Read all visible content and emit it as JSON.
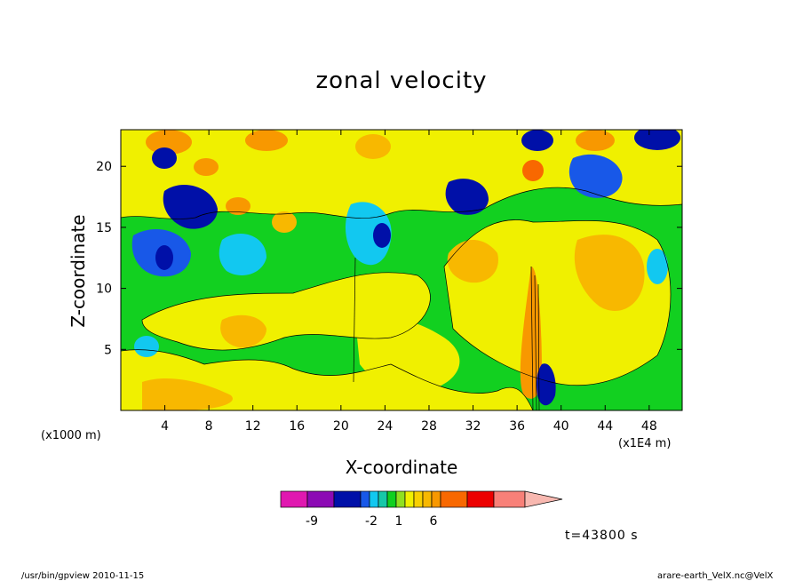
{
  "header": {
    "title": "zonal velocity"
  },
  "axes": {
    "xlabel": "X-coordinate",
    "ylabel": "Z-coordinate",
    "x_unit": "(x1000 m)",
    "x_scale": "(x1E4 m)"
  },
  "colorbar": {
    "tick_labels": [
      "-9",
      "-2",
      "1",
      "6"
    ],
    "colors": [
      "#e018b0",
      "#8c0ab4",
      "#0010a8",
      "#1858e8",
      "#12c8f0",
      "#16c8a8",
      "#10d020",
      "#90e020",
      "#f0f000",
      "#f8d000",
      "#f8b800",
      "#f89800",
      "#f86800",
      "#ec0000",
      "#f88078",
      "#f8b8b0"
    ]
  },
  "footer": {
    "time": "t=43800 s",
    "left_stamp": "/usr/bin/gpview  2010-11-15",
    "right_stamp": "arare-earth_VelX.nc@VelX"
  },
  "chart_data": {
    "type": "heatmap",
    "title": "zonal velocity",
    "xlabel": "X-coordinate",
    "ylabel": "Z-coordinate",
    "xlim": [
      0,
      51
    ],
    "ylim": [
      0,
      23
    ],
    "x_ticks": [
      4,
      8,
      12,
      16,
      20,
      24,
      28,
      32,
      36,
      40,
      44,
      48
    ],
    "y_ticks": [
      5,
      10,
      15,
      20
    ],
    "levels": [
      "-9",
      "-2",
      "1",
      "6"
    ],
    "grid": false,
    "legend": "colorbar-bottom"
  }
}
